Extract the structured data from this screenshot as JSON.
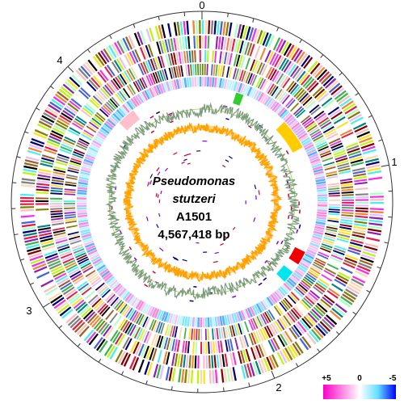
{
  "organism": {
    "genus": "Pseudomonas",
    "species": "stutzeri",
    "strain": "A1501",
    "genome_size": "4,567,418 bp"
  },
  "scale_labels": [
    "0",
    "1",
    "2",
    "3",
    "4"
  ],
  "legend": {
    "max_label": "+5",
    "mid_label": "0",
    "min_label": "-5",
    "colors": [
      "#ff00cc",
      "#ffb3e6",
      "#ffffff",
      "#b3f0ff",
      "#00ccff",
      "#0000ff"
    ]
  },
  "colors": {
    "gc_content": "#8fd400",
    "gc_content_dark": "#7a9a7a",
    "gc_skew": "#ffa200",
    "cog_palette": [
      "#e6194b",
      "#3cb44b",
      "#ffe119",
      "#4363d8",
      "#f58231",
      "#911eb4",
      "#46f0f0",
      "#f032e6",
      "#bcf60c",
      "#fabebe",
      "#008080",
      "#e6beff",
      "#9a6324",
      "#800000",
      "#aaffc3",
      "#808000",
      "#000075",
      "#808080",
      "#000000",
      "#ffd8b1"
    ],
    "island_green": "#33cc33",
    "island_yellow": "#ffcc00",
    "island_red": "#ee0000",
    "island_cyan": "#00e5ee",
    "island_pink": "#ffc0cb",
    "rna_purple": "#8800cc",
    "rna_navy": "#000088",
    "rna_red": "#cc0033"
  },
  "islands": [
    {
      "name": "green",
      "start_mb": 0.22,
      "end_mb": 0.27
    },
    {
      "name": "yellow",
      "start_mb": 0.58,
      "end_mb": 0.78
    },
    {
      "name": "red",
      "start_mb": 1.47,
      "end_mb": 1.56
    },
    {
      "name": "cyan",
      "start_mb": 1.62,
      "end_mb": 1.7
    },
    {
      "name": "pink",
      "start_mb": 3.98,
      "end_mb": 4.1
    }
  ]
}
